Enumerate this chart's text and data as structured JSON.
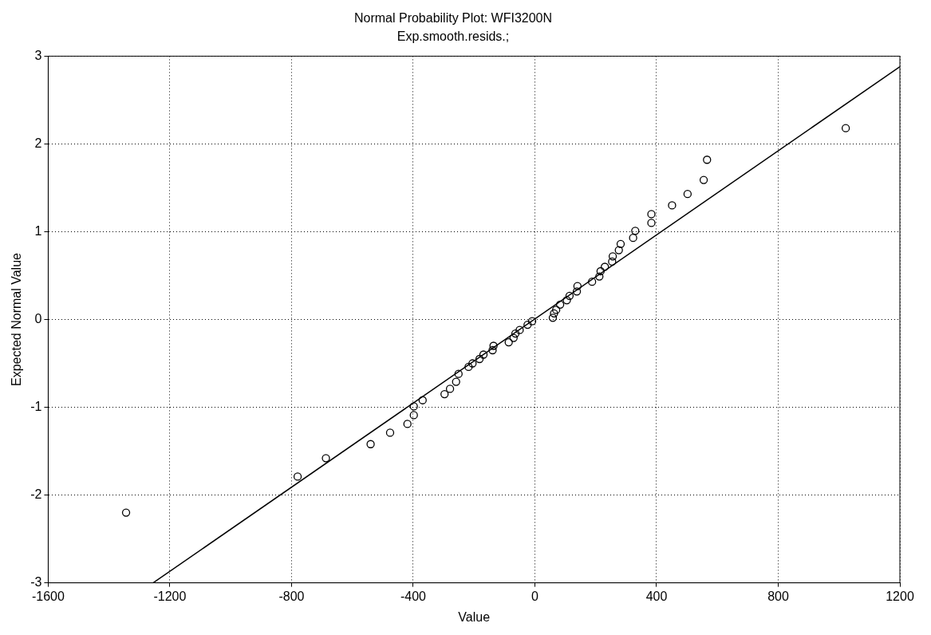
{
  "chart_data": {
    "type": "scatter",
    "title": "Normal Probability Plot: WFI3200N",
    "subtitle": "Exp.smooth.resids.;",
    "xlabel": "Value",
    "ylabel": "Expected Normal Value",
    "xlim": [
      -1600,
      1200
    ],
    "xticks": [
      -1600,
      -1200,
      -800,
      -400,
      0,
      400,
      800,
      1200
    ],
    "ylim": [
      -3,
      3
    ],
    "yticks": [
      -3,
      -2,
      -1,
      0,
      1,
      2,
      3
    ],
    "grid": true,
    "legend": false,
    "marker": "circle",
    "series": [
      {
        "type": "scatter",
        "color": "#000000",
        "x": [
          -1344,
          -780,
          -687,
          -540,
          -476,
          -419,
          -398,
          -398,
          -369,
          -297,
          -279,
          -259,
          -251,
          -218,
          -205,
          -182,
          -169,
          -139,
          -136,
          -86,
          -70,
          -64,
          -50,
          -24,
          -9,
          59,
          63,
          70,
          83,
          105,
          114,
          138,
          140,
          188,
          212,
          216,
          230,
          254,
          256,
          276,
          282,
          323,
          330,
          383,
          383,
          451,
          502,
          555,
          566,
          1022
        ],
        "values": [
          -2.2,
          -1.79,
          -1.58,
          -1.42,
          -1.29,
          -1.19,
          -1.09,
          -0.99,
          -0.92,
          -0.85,
          -0.79,
          -0.71,
          -0.62,
          -0.54,
          -0.5,
          -0.45,
          -0.4,
          -0.35,
          -0.3,
          -0.26,
          -0.21,
          -0.16,
          -0.12,
          -0.06,
          -0.02,
          0.02,
          0.07,
          0.11,
          0.17,
          0.22,
          0.27,
          0.32,
          0.38,
          0.43,
          0.49,
          0.55,
          0.6,
          0.66,
          0.72,
          0.79,
          0.86,
          0.93,
          1.01,
          1.1,
          1.2,
          1.3,
          1.43,
          1.59,
          1.82,
          2.18
        ]
      },
      {
        "type": "line",
        "color": "#000000",
        "marker": "none",
        "line_style": "solid",
        "x": [
          -1255,
          1200
        ],
        "values": [
          -3,
          2.88
        ]
      }
    ]
  }
}
